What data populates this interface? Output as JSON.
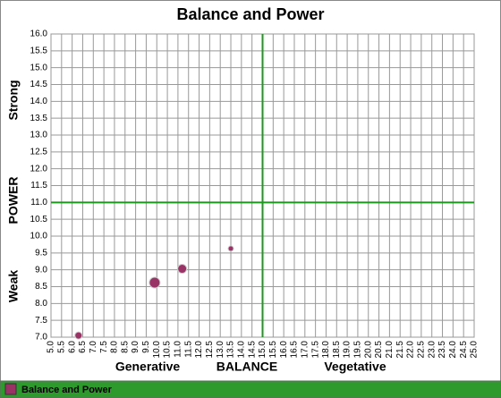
{
  "chart_data": {
    "type": "bubble",
    "title": "Balance and Power",
    "y_axis_labels": [
      "Strong",
      "POWER",
      "Weak"
    ],
    "x_axis_labels": [
      "Generative",
      "BALANCE",
      "Vegetative"
    ],
    "series": [
      {
        "name": "Balance and Power",
        "color": "#993366",
        "x": [
          6.3,
          9.9,
          11.2,
          13.5
        ],
        "values": [
          7.05,
          8.62,
          9.03,
          9.63
        ],
        "sizes": [
          4,
          6,
          5,
          3
        ]
      }
    ],
    "reference_lines": {
      "x": 15.0,
      "y": 11.0,
      "color": "#1a9a1a"
    },
    "xlim": [
      5,
      25
    ],
    "ylim": [
      7,
      16
    ],
    "grid": true,
    "legend": "bottom",
    "xticks": [
      {
        "value": 5,
        "label": "5.0"
      },
      {
        "value": 5.5,
        "label": "5.5"
      },
      {
        "value": 6,
        "label": "6.0"
      },
      {
        "value": 6.5,
        "label": "6.5"
      },
      {
        "value": 7,
        "label": "7.0"
      },
      {
        "value": 7.5,
        "label": "7.5"
      },
      {
        "value": 8,
        "label": "8.0"
      },
      {
        "value": 8.5,
        "label": "8.5"
      },
      {
        "value": 9,
        "label": "9.0"
      },
      {
        "value": 9.5,
        "label": "9.5"
      },
      {
        "value": 10,
        "label": "10.0"
      },
      {
        "value": 10.5,
        "label": "10.5"
      },
      {
        "value": 11,
        "label": "11.0"
      },
      {
        "value": 11.5,
        "label": "11.5"
      },
      {
        "value": 12,
        "label": "12.0"
      },
      {
        "value": 12.5,
        "label": "12.5"
      },
      {
        "value": 13,
        "label": "13.0"
      },
      {
        "value": 13.5,
        "label": "13.5"
      },
      {
        "value": 14,
        "label": "14.0"
      },
      {
        "value": 14.5,
        "label": "14.5"
      },
      {
        "value": 15,
        "label": "15.0"
      },
      {
        "value": 15.5,
        "label": "15.5"
      },
      {
        "value": 16,
        "label": "16.0"
      },
      {
        "value": 16.5,
        "label": "16.5"
      },
      {
        "value": 17,
        "label": "17.0"
      },
      {
        "value": 17.5,
        "label": "17.5"
      },
      {
        "value": 18,
        "label": "18.0"
      },
      {
        "value": 18.5,
        "label": "18.5"
      },
      {
        "value": 19,
        "label": "19.0"
      },
      {
        "value": 19.5,
        "label": "19.5"
      },
      {
        "value": 20,
        "label": "20.0"
      },
      {
        "value": 20.5,
        "label": "20.5"
      },
      {
        "value": 21,
        "label": "21.0"
      },
      {
        "value": 21.5,
        "label": "21.5"
      },
      {
        "value": 22,
        "label": "22.0"
      },
      {
        "value": 22.5,
        "label": "22.5"
      },
      {
        "value": 23,
        "label": "23.0"
      },
      {
        "value": 23.5,
        "label": "23.5"
      },
      {
        "value": 24,
        "label": "24.0"
      },
      {
        "value": 24.5,
        "label": "24.5"
      },
      {
        "value": 25,
        "label": "25.0"
      }
    ],
    "yticks": [
      {
        "value": 7,
        "label": "7.0"
      },
      {
        "value": 7.5,
        "label": "7.5"
      },
      {
        "value": 8,
        "label": "8.0"
      },
      {
        "value": 8.5,
        "label": "8.5"
      },
      {
        "value": 9,
        "label": "9.0"
      },
      {
        "value": 9.5,
        "label": "9.5"
      },
      {
        "value": 10,
        "label": "10.0"
      },
      {
        "value": 10.5,
        "label": "10.5"
      },
      {
        "value": 11,
        "label": "11.0"
      },
      {
        "value": 11.5,
        "label": "11.5"
      },
      {
        "value": 12,
        "label": "12.0"
      },
      {
        "value": 12.5,
        "label": "12.5"
      },
      {
        "value": 13,
        "label": "13.0"
      },
      {
        "value": 13.5,
        "label": "13.5"
      },
      {
        "value": 14,
        "label": "14.0"
      },
      {
        "value": 14.5,
        "label": "14.5"
      },
      {
        "value": 15,
        "label": "15.0"
      },
      {
        "value": 15.5,
        "label": "15.5"
      },
      {
        "value": 16,
        "label": "16.0"
      }
    ]
  }
}
